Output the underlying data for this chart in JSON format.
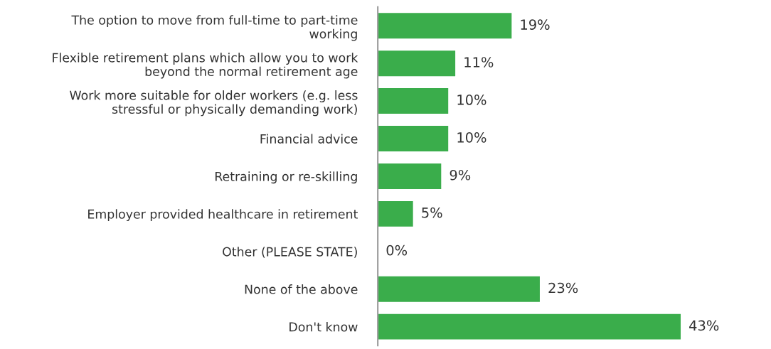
{
  "chart_data": {
    "type": "bar",
    "orientation": "horizontal",
    "categories": [
      "The option to move from full-time to part-time\nworking",
      "Flexible retirement plans which allow you to work\nbeyond the normal retirement age",
      "Work more suitable for older workers (e.g. less\nstressful or physically demanding work)",
      "Financial advice",
      "Retraining or re-skilling",
      "Employer provided healthcare in retirement",
      "Other (PLEASE STATE)",
      "None of the above",
      "Don't know"
    ],
    "values": [
      19,
      11,
      10,
      10,
      9,
      5,
      0,
      23,
      43
    ],
    "value_labels": [
      "19%",
      "11%",
      "10%",
      "10%",
      "9%",
      "5%",
      "0%",
      "23%",
      "43%"
    ],
    "color": "#3aad4b",
    "grid": false,
    "legend": false
  }
}
